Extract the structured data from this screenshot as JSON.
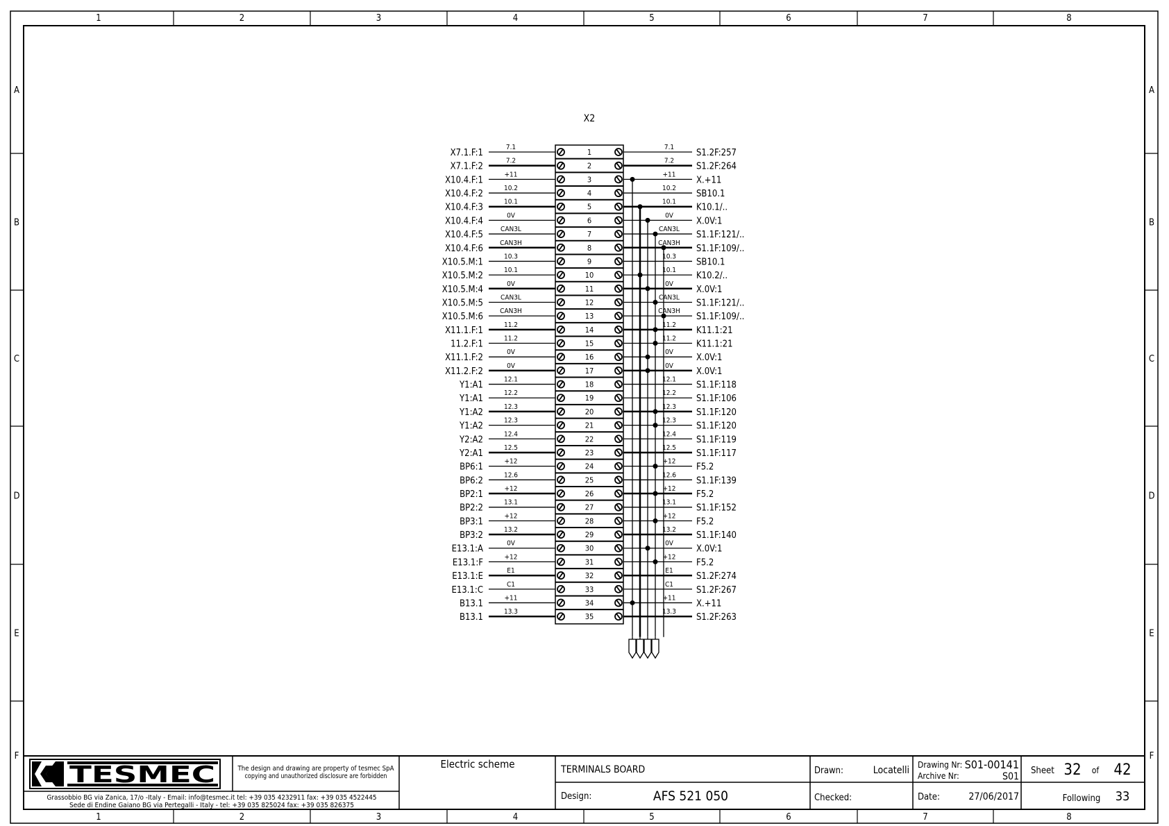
{
  "frame": {
    "columns": [
      "1",
      "2",
      "3",
      "4",
      "5",
      "6",
      "7",
      "8"
    ],
    "rows": [
      "A",
      "B",
      "C",
      "D",
      "E",
      "F"
    ]
  },
  "diagram": {
    "terminal_block": "X2",
    "terminals": [
      {
        "n": "1",
        "left": "X7.1.F:1",
        "lwire": "7.1",
        "rwire": "7.1",
        "right": "S1.2F:257",
        "bus": null
      },
      {
        "n": "2",
        "left": "X7.1.F:2",
        "lwire": "7.2",
        "rwire": "7.2",
        "right": "S1.2F:264",
        "bus": null
      },
      {
        "n": "3",
        "left": "X10.4.F:1",
        "lwire": "+11",
        "rwire": "+11",
        "right": "X.+11",
        "bus": 0
      },
      {
        "n": "4",
        "left": "X10.4.F:2",
        "lwire": "10.2",
        "rwire": "10.2",
        "right": "SB10.1",
        "bus": null
      },
      {
        "n": "5",
        "left": "X10.4.F:3",
        "lwire": "10.1",
        "rwire": "10.1",
        "right": "K10.1/..",
        "bus": 1
      },
      {
        "n": "6",
        "left": "X10.4.F:4",
        "lwire": "0V",
        "rwire": "0V",
        "right": "X.0V:1",
        "bus": 2
      },
      {
        "n": "7",
        "left": "X10.4.F:5",
        "lwire": "CAN3L",
        "rwire": "CAN3L",
        "right": "S1.1F:121/..",
        "bus": 3
      },
      {
        "n": "8",
        "left": "X10.4.F:6",
        "lwire": "CAN3H",
        "rwire": "CAN3H",
        "right": "S1.1F:109/..",
        "bus": 4
      },
      {
        "n": "9",
        "left": "X10.5.M:1",
        "lwire": "10.3",
        "rwire": "10.3",
        "right": "SB10.1",
        "bus": null
      },
      {
        "n": "10",
        "left": "X10.5.M:2",
        "lwire": "10.1",
        "rwire": "10.1",
        "right": "K10.2/..",
        "bus": 1
      },
      {
        "n": "11",
        "left": "X10.5.M:4",
        "lwire": "0V",
        "rwire": "0V",
        "right": "X.0V:1",
        "bus": 2
      },
      {
        "n": "12",
        "left": "X10.5.M:5",
        "lwire": "CAN3L",
        "rwire": "CAN3L",
        "right": "S1.1F:121/..",
        "bus": 3
      },
      {
        "n": "13",
        "left": "X10.5.M:6",
        "lwire": "CAN3H",
        "rwire": "CAN3H",
        "right": "S1.1F:109/..",
        "bus": 4
      },
      {
        "n": "14",
        "left": "X11.1.F:1",
        "lwire": "11.2",
        "rwire": "11.2",
        "right": "K11.1:21",
        "bus": 3
      },
      {
        "n": "15",
        "left": "11.2.F:1",
        "lwire": "11.2",
        "rwire": "11.2",
        "right": "K11.1:21",
        "bus": 3
      },
      {
        "n": "16",
        "left": "X11.1.F:2",
        "lwire": "0V",
        "rwire": "0V",
        "right": "X.0V:1",
        "bus": 2
      },
      {
        "n": "17",
        "left": "X11.2.F:2",
        "lwire": "0V",
        "rwire": "0V",
        "right": "X.0V:1",
        "bus": 2
      },
      {
        "n": "18",
        "left": "Y1:A1",
        "lwire": "12.1",
        "rwire": "12.1",
        "right": "S1.1F:118",
        "bus": null
      },
      {
        "n": "19",
        "left": "Y1:A1",
        "lwire": "12.2",
        "rwire": "12.2",
        "right": "S1.1F:106",
        "bus": null
      },
      {
        "n": "20",
        "left": "Y1:A2",
        "lwire": "12.3",
        "rwire": "12.3",
        "right": "S1.1F:120",
        "bus": 3
      },
      {
        "n": "21",
        "left": "Y1:A2",
        "lwire": "12.3",
        "rwire": "12.3",
        "right": "S1.1F:120",
        "bus": 3
      },
      {
        "n": "22",
        "left": "Y2:A2",
        "lwire": "12.4",
        "rwire": "12.4",
        "right": "S1.1F:119",
        "bus": null
      },
      {
        "n": "23",
        "left": "Y2:A1",
        "lwire": "12.5",
        "rwire": "12.5",
        "right": "S1.1F:117",
        "bus": null
      },
      {
        "n": "24",
        "left": "BP6:1",
        "lwire": "+12",
        "rwire": "+12",
        "right": "F5.2",
        "bus": 3
      },
      {
        "n": "25",
        "left": "BP6:2",
        "lwire": "12.6",
        "rwire": "12.6",
        "right": "S1.1F:139",
        "bus": null
      },
      {
        "n": "26",
        "left": "BP2:1",
        "lwire": "+12",
        "rwire": "+12",
        "right": "F5.2",
        "bus": 3
      },
      {
        "n": "27",
        "left": "BP2:2",
        "lwire": "13.1",
        "rwire": "13.1",
        "right": "S1.1F:152",
        "bus": null
      },
      {
        "n": "28",
        "left": "BP3:1",
        "lwire": "+12",
        "rwire": "+12",
        "right": "F5.2",
        "bus": 3
      },
      {
        "n": "29",
        "left": "BP3:2",
        "lwire": "13.2",
        "rwire": "13.2",
        "right": "S1.1F:140",
        "bus": null
      },
      {
        "n": "30",
        "left": "E13.1:A",
        "lwire": "0V",
        "rwire": "0V",
        "right": "X.0V:1",
        "bus": 2
      },
      {
        "n": "31",
        "left": "E13.1:F",
        "lwire": "+12",
        "rwire": "+12",
        "right": "F5.2",
        "bus": 3
      },
      {
        "n": "32",
        "left": "E13.1:E",
        "lwire": "E1",
        "rwire": "E1",
        "right": "S1.2F:274",
        "bus": null
      },
      {
        "n": "33",
        "left": "E13.1:C",
        "lwire": "C1",
        "rwire": "C1",
        "right": "S1.2F:267",
        "bus": null
      },
      {
        "n": "34",
        "left": "B13.1",
        "lwire": "+11",
        "rwire": "+11",
        "right": "X.+11",
        "bus": 0
      },
      {
        "n": "35",
        "left": "B13.1",
        "lwire": "13.3",
        "rwire": "13.3",
        "right": "S1.2F:263",
        "bus": null
      }
    ]
  },
  "title_block": {
    "logo": "TESMEC",
    "notice_line1": "The design and drawing are property of tesmec SpA",
    "notice_line2": "copying and unauthorized disclosure are forbidden",
    "address_line1": "Grassobbio BG via Zanica, 17/o -Italy -  Email: info@tesmec.it  tel: +39 035 4232911 fax: +39 035 4522445",
    "address_line2": "Sede di Endine Gaiano BG via Pertegalli - Italy -  tel: +39 035 825024 fax: +39 035 826375",
    "scheme_type": "Electric scheme",
    "title": "TERMINALS BOARD",
    "design_label": "Design:",
    "design_value": "AFS 521 050",
    "drawn_label": "Drawn:",
    "drawn_value": "Locatelli",
    "checked_label": "Checked:",
    "drawing_nr_label": "Drawing Nr:",
    "drawing_nr_value": "S01-00141",
    "archive_nr_label": "Archive Nr:",
    "archive_nr_value": "S01",
    "date_label": "Date:",
    "date_value": "27/06/2017",
    "sheet_label": "Sheet",
    "sheet_value": "32",
    "of_label": "of",
    "sheet_total": "42",
    "following_label": "Following",
    "following_value": "33"
  }
}
